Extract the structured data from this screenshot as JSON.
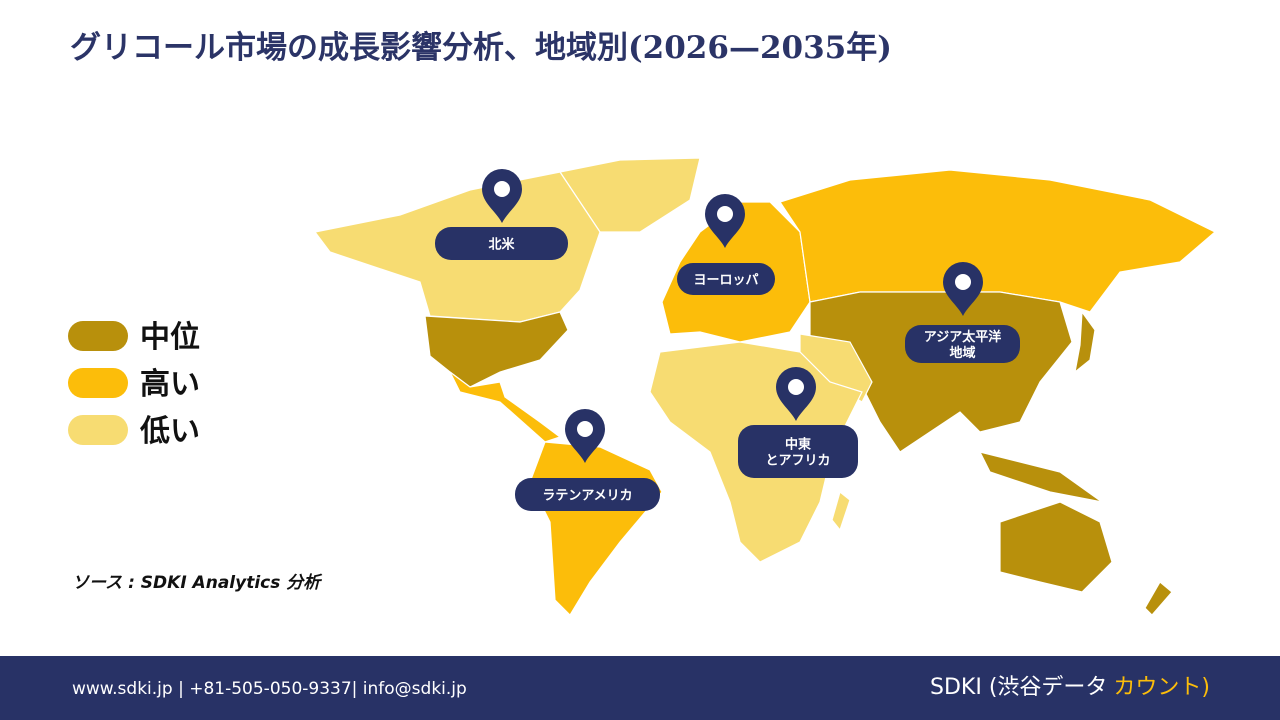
{
  "title": "グリコール市場の成長影響分析、地域別(2026—2035年)",
  "legend": [
    {
      "label": "中位",
      "color": "#b8900c"
    },
    {
      "label": "高い",
      "color": "#fcbd0a"
    },
    {
      "label": "低い",
      "color": "#f7dc72"
    }
  ],
  "regions": [
    {
      "lines": [
        "北米"
      ]
    },
    {
      "lines": [
        "ヨーロッパ"
      ]
    },
    {
      "lines": [
        "アジア太平洋",
        "地域"
      ]
    },
    {
      "lines": [
        "中東",
        "とアフリカ"
      ]
    },
    {
      "lines": [
        "ラテンアメリカ"
      ]
    }
  ],
  "source": "ソース : SDKI Analytics 分析",
  "footer": {
    "contact": "www.sdki.jp | +81-505-050-9337| info@sdki.jp",
    "brand": "SDKI (渋谷データ",
    "brand_accent": "カウント)"
  }
}
